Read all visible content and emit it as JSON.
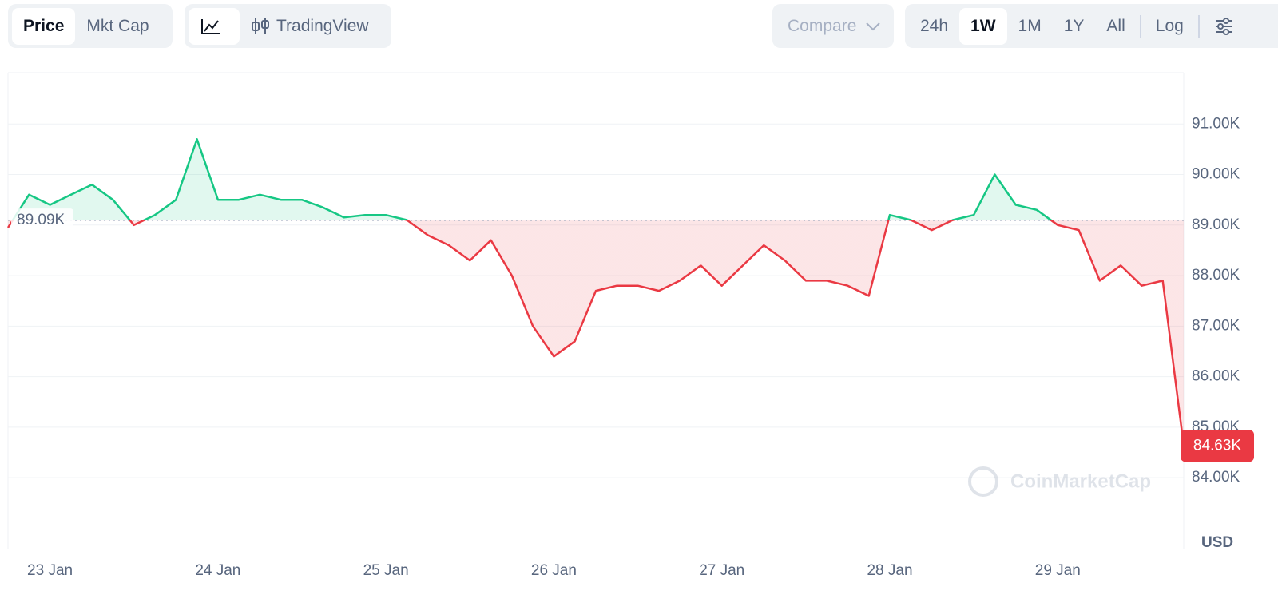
{
  "toolbar": {
    "views": [
      "Price",
      "Mkt Cap"
    ],
    "chart_kinds": [
      "TradingView"
    ],
    "compare": "Compare",
    "ranges": [
      "24h",
      "1W",
      "1M",
      "1Y",
      "All"
    ],
    "scale": "Log"
  },
  "watermark": "CoinMarketCap",
  "chart_data": {
    "type": "line",
    "categories": [
      null,
      null,
      "23 Jan",
      null,
      null,
      null,
      null,
      null,
      null,
      null,
      "24 Jan",
      null,
      null,
      null,
      null,
      null,
      null,
      null,
      "25 Jan",
      null,
      null,
      null,
      null,
      null,
      null,
      null,
      "26 Jan",
      null,
      null,
      null,
      null,
      null,
      null,
      null,
      "27 Jan",
      null,
      null,
      null,
      null,
      null,
      null,
      null,
      "28 Jan",
      null,
      null,
      null,
      null,
      null,
      null,
      null,
      "29 Jan",
      null,
      null,
      null,
      null,
      null,
      null
    ],
    "series": [
      {
        "name": "Price",
        "color": "#16c784",
        "negative_color": "#ea3943",
        "values": [
          88950,
          89600,
          89400,
          89600,
          89800,
          89500,
          89000,
          89200,
          89500,
          90700,
          89500,
          89500,
          89600,
          89500,
          89500,
          89350,
          89150,
          89200,
          89200,
          89100,
          88800,
          88600,
          88300,
          88700,
          88000,
          87000,
          86400,
          86700,
          87700,
          87800,
          87800,
          87700,
          87900,
          88200,
          87800,
          88200,
          88600,
          88300,
          87900,
          87900,
          87800,
          87600,
          89200,
          89100,
          88900,
          89100,
          89200,
          90000,
          89400,
          89300,
          89000,
          88900,
          87900,
          88200,
          87800,
          87900,
          84630
        ]
      }
    ],
    "last_value_label": "84.63K",
    "reference_line": {
      "value": 89090,
      "label": "89.09K"
    },
    "ylim": [
      82580,
      92000
    ],
    "yticks": [
      {
        "value": 84000,
        "label": "84.00K"
      },
      {
        "value": 85000,
        "label": "85.00K"
      },
      {
        "value": 86000,
        "label": "86.00K"
      },
      {
        "value": 87000,
        "label": "87.00K"
      },
      {
        "value": 88000,
        "label": "88.00K"
      },
      {
        "value": 89000,
        "label": "89.00K"
      },
      {
        "value": 90000,
        "label": "90.00K"
      },
      {
        "value": 91000,
        "label": "91.00K"
      }
    ],
    "y_axis_label": "USD",
    "grid": true
  }
}
